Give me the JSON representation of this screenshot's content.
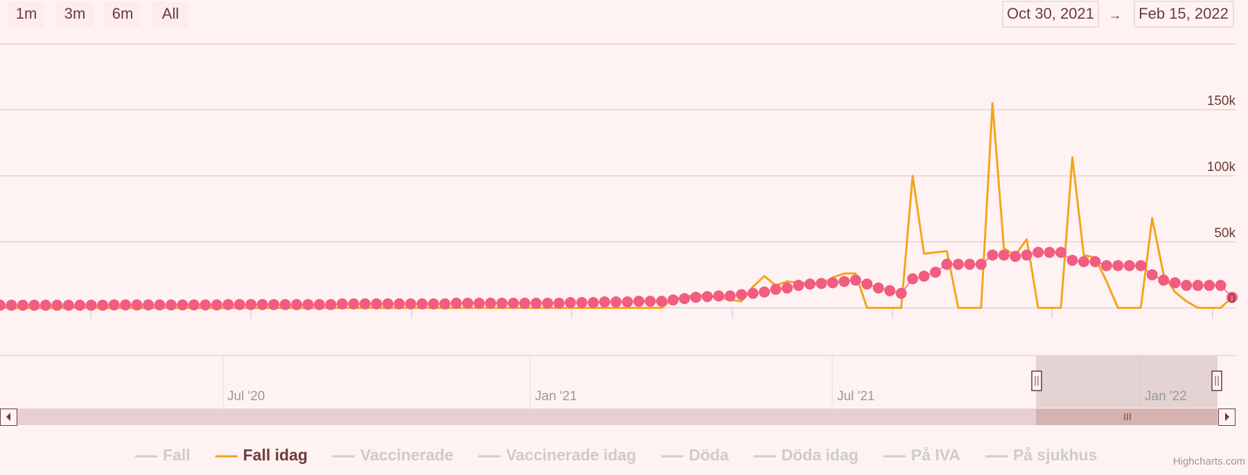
{
  "chart_data": {
    "type": "line",
    "range_selector": {
      "buttons": [
        "1m",
        "3m",
        "6m",
        "All"
      ],
      "from": "Oct 30, 2021",
      "separator": "→",
      "to": "Feb 15, 2022"
    },
    "ylim": [
      0,
      200000
    ],
    "yticks": [
      0,
      {
        "value": 50000,
        "label": "50k"
      },
      {
        "value": 100000,
        "label": "100k"
      },
      {
        "value": 150000,
        "label": "150k"
      }
    ],
    "grid": true,
    "series": [
      {
        "name": "Fall",
        "visible": false
      },
      {
        "name": "Fall idag",
        "visible": true,
        "color": "#f7a21b",
        "values": [
          0,
          0,
          0,
          0,
          0,
          0,
          0,
          0,
          0,
          0,
          0,
          0,
          0,
          0,
          0,
          0,
          0,
          0,
          0,
          0,
          0,
          0,
          0,
          0,
          0,
          0,
          0,
          0,
          0,
          0,
          0,
          0,
          0,
          0,
          0,
          0,
          0,
          0,
          0,
          0,
          0,
          0,
          0,
          0,
          0,
          0,
          0,
          0,
          0,
          0,
          0,
          0,
          0,
          0,
          0,
          0,
          0,
          0,
          0,
          7000,
          8000,
          10000,
          9000,
          8000,
          6000,
          5000,
          16000,
          24000,
          17000,
          20000,
          19000,
          19000,
          18000,
          23000,
          26000,
          26000,
          0,
          0,
          0,
          0,
          100000,
          41000,
          42000,
          43000,
          0,
          0,
          0,
          155000,
          45000,
          40000,
          52000,
          0,
          0,
          0,
          114000,
          40000,
          38000,
          20000,
          0,
          0,
          0,
          68000,
          25000,
          12000,
          5000,
          0,
          0,
          0,
          8000
        ]
      },
      {
        "name": "Vaccinerade",
        "visible": false
      },
      {
        "name": "Vaccinerade idag",
        "visible": false
      },
      {
        "name": "Döda",
        "visible": false
      },
      {
        "name": "Döda idag",
        "visible": false
      },
      {
        "name": "På IVA",
        "visible": false
      },
      {
        "name": "På sjukhus",
        "visible": false
      },
      {
        "visible": true,
        "color": "#f15c80",
        "marker": true,
        "values": [
          2000,
          2000,
          2000,
          2000,
          2000,
          2000,
          2000,
          2000,
          2000,
          2000,
          2200,
          2200,
          2200,
          2200,
          2200,
          2200,
          2200,
          2200,
          2200,
          2200,
          2500,
          2500,
          2500,
          2500,
          2500,
          2500,
          2500,
          2500,
          2500,
          2500,
          3000,
          3000,
          3000,
          3000,
          3000,
          3000,
          3000,
          3000,
          3000,
          3000,
          3500,
          3500,
          3500,
          3500,
          3500,
          3500,
          3500,
          3500,
          3500,
          3500,
          4000,
          4000,
          4000,
          4500,
          4500,
          4500,
          5000,
          5000,
          5000,
          6000,
          7000,
          8000,
          8500,
          9000,
          9000,
          10000,
          11000,
          12000,
          14000,
          15000,
          17000,
          18000,
          18500,
          19000,
          20000,
          21000,
          18000,
          15000,
          13000,
          11000,
          22000,
          24000,
          27000,
          33000,
          33000,
          33000,
          33000,
          40000,
          40000,
          39000,
          40000,
          42000,
          42000,
          42000,
          36000,
          35000,
          35000,
          32000,
          32000,
          32000,
          32000,
          25000,
          21000,
          19000,
          17000,
          17000,
          17000,
          17000,
          8000
        ]
      }
    ],
    "navigator": {
      "labels": [
        "Jul '20",
        "Jan '21",
        "Jul '21",
        "Jan '22"
      ]
    },
    "credits": "Highcharts.com"
  }
}
